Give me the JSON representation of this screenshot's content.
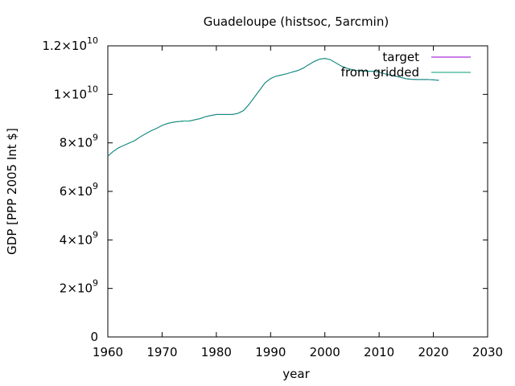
{
  "chart_data": {
    "type": "line",
    "title": "Guadeloupe (histsoc, 5arcmin)",
    "xlabel": "year",
    "ylabel": "GDP [PPP 2005 Int $]",
    "xlim": [
      1960,
      2030
    ],
    "ylim": [
      0,
      12000000000
    ],
    "x_ticks": [
      1960,
      1970,
      1980,
      1990,
      2000,
      2010,
      2020,
      2030
    ],
    "y_ticks": [
      {
        "value": 0,
        "mant": "0",
        "exp": ""
      },
      {
        "value": 2000000000,
        "mant": "2×10",
        "exp": "9"
      },
      {
        "value": 4000000000,
        "mant": "4×10",
        "exp": "9"
      },
      {
        "value": 6000000000,
        "mant": "6×10",
        "exp": "9"
      },
      {
        "value": 8000000000,
        "mant": "8×10",
        "exp": "9"
      },
      {
        "value": 10000000000,
        "mant": "1×10",
        "exp": "10"
      },
      {
        "value": 12000000000,
        "mant": "1.2×10",
        "exp": "10"
      }
    ],
    "legend_position": "top-right",
    "series": [
      {
        "name": "target",
        "color": "#9400d3",
        "x": [
          1960,
          1961,
          1962,
          1963,
          1964,
          1965,
          1966,
          1967,
          1968,
          1969,
          1970,
          1971,
          1972,
          1973,
          1974,
          1975,
          1976,
          1977,
          1978,
          1979,
          1980,
          1981,
          1982,
          1983,
          1984,
          1985,
          1986,
          1987,
          1988,
          1989,
          1990,
          1991,
          1992,
          1993,
          1994,
          1995,
          1996,
          1997,
          1998,
          1999,
          2000,
          2001,
          2002,
          2003,
          2004,
          2005,
          2006,
          2007,
          2008,
          2009,
          2010,
          2011,
          2012,
          2013,
          2014,
          2015,
          2016,
          2017,
          2018,
          2019,
          2020,
          2021
        ],
        "y": [
          7450000000,
          7650000000,
          7800000000,
          7900000000,
          8000000000,
          8100000000,
          8250000000,
          8380000000,
          8500000000,
          8600000000,
          8720000000,
          8800000000,
          8850000000,
          8880000000,
          8900000000,
          8900000000,
          8950000000,
          9000000000,
          9080000000,
          9130000000,
          9170000000,
          9170000000,
          9170000000,
          9170000000,
          9220000000,
          9330000000,
          9580000000,
          9880000000,
          10180000000,
          10480000000,
          10650000000,
          10750000000,
          10800000000,
          10850000000,
          10920000000,
          10980000000,
          11080000000,
          11220000000,
          11350000000,
          11450000000,
          11480000000,
          11430000000,
          11300000000,
          11170000000,
          11080000000,
          11020000000,
          10980000000,
          10960000000,
          10950000000,
          10950000000,
          10920000000,
          10850000000,
          10800000000,
          10750000000,
          10700000000,
          10640000000,
          10620000000,
          10610000000,
          10610000000,
          10610000000,
          10600000000,
          10580000000
        ]
      },
      {
        "name": "from gridded",
        "color": "#009e73",
        "x": [
          1960,
          1961,
          1962,
          1963,
          1964,
          1965,
          1966,
          1967,
          1968,
          1969,
          1970,
          1971,
          1972,
          1973,
          1974,
          1975,
          1976,
          1977,
          1978,
          1979,
          1980,
          1981,
          1982,
          1983,
          1984,
          1985,
          1986,
          1987,
          1988,
          1989,
          1990,
          1991,
          1992,
          1993,
          1994,
          1995,
          1996,
          1997,
          1998,
          1999,
          2000,
          2001,
          2002,
          2003,
          2004,
          2005,
          2006,
          2007,
          2008,
          2009,
          2010,
          2011,
          2012,
          2013,
          2014,
          2015,
          2016,
          2017,
          2018,
          2019,
          2020,
          2021
        ],
        "y": [
          7450000000,
          7650000000,
          7800000000,
          7900000000,
          8000000000,
          8100000000,
          8250000000,
          8380000000,
          8500000000,
          8600000000,
          8720000000,
          8800000000,
          8850000000,
          8880000000,
          8900000000,
          8900000000,
          8950000000,
          9000000000,
          9080000000,
          9130000000,
          9170000000,
          9170000000,
          9170000000,
          9170000000,
          9220000000,
          9330000000,
          9580000000,
          9880000000,
          10180000000,
          10480000000,
          10650000000,
          10750000000,
          10800000000,
          10850000000,
          10920000000,
          10980000000,
          11080000000,
          11220000000,
          11350000000,
          11450000000,
          11480000000,
          11430000000,
          11300000000,
          11170000000,
          11080000000,
          11020000000,
          10980000000,
          10960000000,
          10950000000,
          10950000000,
          10920000000,
          10850000000,
          10800000000,
          10750000000,
          10700000000,
          10640000000,
          10620000000,
          10610000000,
          10610000000,
          10610000000,
          10600000000,
          10580000000
        ]
      }
    ]
  }
}
